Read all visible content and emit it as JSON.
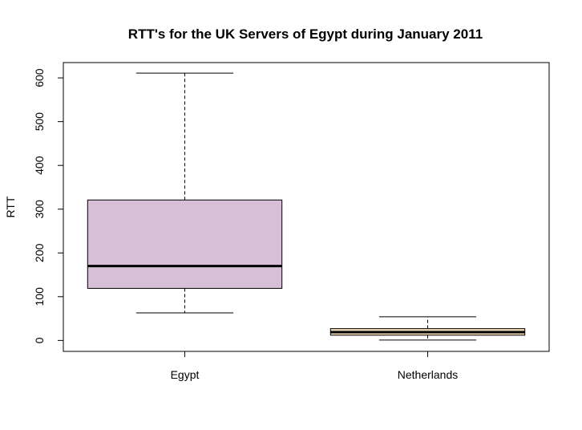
{
  "chart_data": {
    "type": "boxplot",
    "title": "RTT's for the UK Servers of Egypt during January 2011",
    "xlabel": "",
    "ylabel": "RTT",
    "ylim": [
      -25,
      635
    ],
    "yticks": [
      0,
      100,
      200,
      300,
      400,
      500,
      600
    ],
    "ytick_labels": [
      "0",
      "100",
      "200",
      "300",
      "400",
      "500",
      "600"
    ],
    "grid": false,
    "categories": [
      "Egypt",
      "Netherlands"
    ],
    "boxes": [
      {
        "category": "Egypt",
        "whisker_low": 63,
        "q1": 119,
        "median": 170,
        "q3": 321,
        "whisker_high": 611,
        "color": "#d8bfd8"
      },
      {
        "category": "Netherlands",
        "whisker_low": 1,
        "q1": 12,
        "median": 19,
        "q3": 27,
        "whisker_high": 54,
        "color": "#f5deb3"
      }
    ]
  }
}
